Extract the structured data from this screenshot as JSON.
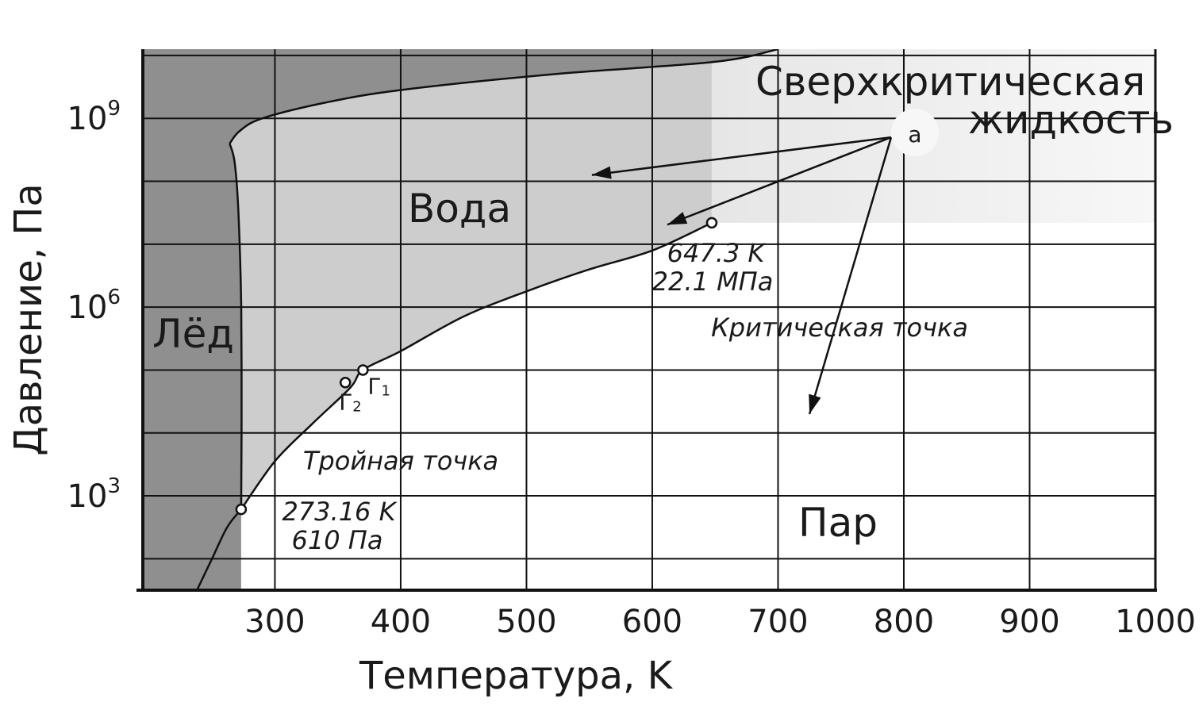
{
  "chart_data": {
    "type": "line",
    "title": "",
    "xlabel": "Температура, K",
    "ylabel": "Давление, Па",
    "xlim": [
      195,
      1000
    ],
    "ylim_log10": [
      1.5,
      10.1
    ],
    "y_scale": "log",
    "x_ticks": [
      300,
      400,
      500,
      600,
      700,
      800,
      900,
      1000
    ],
    "y_ticks": [
      {
        "value": 3,
        "base": "10",
        "exp": "3"
      },
      {
        "value": 6,
        "base": "10",
        "exp": "6"
      },
      {
        "value": 9,
        "base": "10",
        "exp": "9"
      }
    ],
    "grid": true,
    "regions": [
      {
        "name": "Лёд",
        "fill": "#8f8f8f"
      },
      {
        "name": "Вода",
        "fill": "#cdcdcd"
      },
      {
        "name": "Пар",
        "fill": "#ffffff"
      },
      {
        "name_line1": "Сверхкритическая",
        "name_line2": "жидкость",
        "fill": "#eeeeee"
      }
    ],
    "curves": [
      {
        "name": "sublimation",
        "points": [
          [
            238,
            1.5
          ],
          [
            250,
            2.0
          ],
          [
            262,
            2.5
          ],
          [
            273.16,
            2.785
          ]
        ]
      },
      {
        "name": "vaporization",
        "points": [
          [
            273.16,
            2.785
          ],
          [
            300,
            3.55
          ],
          [
            330,
            4.15
          ],
          [
            360,
            4.72
          ],
          [
            370,
            5.0
          ],
          [
            400,
            5.3
          ],
          [
            450,
            5.85
          ],
          [
            500,
            6.25
          ],
          [
            550,
            6.6
          ],
          [
            600,
            6.9
          ],
          [
            647.3,
            7.34
          ]
        ]
      },
      {
        "name": "melting",
        "points": [
          [
            273.16,
            2.785
          ],
          [
            273.5,
            4.0
          ],
          [
            273.2,
            6.0
          ],
          [
            271,
            7.5
          ],
          [
            268,
            8.3
          ],
          [
            264,
            8.6
          ]
        ]
      },
      {
        "name": "ice-boundary",
        "points": [
          [
            264,
            8.6
          ],
          [
            272,
            8.8
          ],
          [
            290,
            9.0
          ],
          [
            340,
            9.25
          ],
          [
            400,
            9.45
          ],
          [
            520,
            9.7
          ],
          [
            650,
            9.9
          ],
          [
            700,
            10.1
          ]
        ]
      }
    ],
    "points": [
      {
        "id": "triple",
        "x": 273.16,
        "y": 2.785
      },
      {
        "id": "critical",
        "x": 647.3,
        "y": 7.34
      },
      {
        "id": "g1",
        "x": 370,
        "y": 5.0,
        "label": "Г",
        "sub": "1"
      },
      {
        "id": "g2",
        "x": 356,
        "y": 4.8,
        "label": "Г",
        "sub": "2"
      }
    ],
    "annotations": {
      "triple_name": "Тройная точка",
      "triple_t": "273.16 K",
      "triple_p": "610 Па",
      "critical_name": "Критическая точка",
      "critical_t": "647.3 K",
      "critical_p": "22.1 МПа",
      "marker": "a"
    },
    "arrows_from_marker": [
      {
        "to": [
          552,
          8.1
        ]
      },
      {
        "to": [
          612,
          7.31
        ]
      },
      {
        "to": [
          725,
          4.3
        ]
      }
    ],
    "marker_pos": [
      800,
      8.8
    ]
  }
}
